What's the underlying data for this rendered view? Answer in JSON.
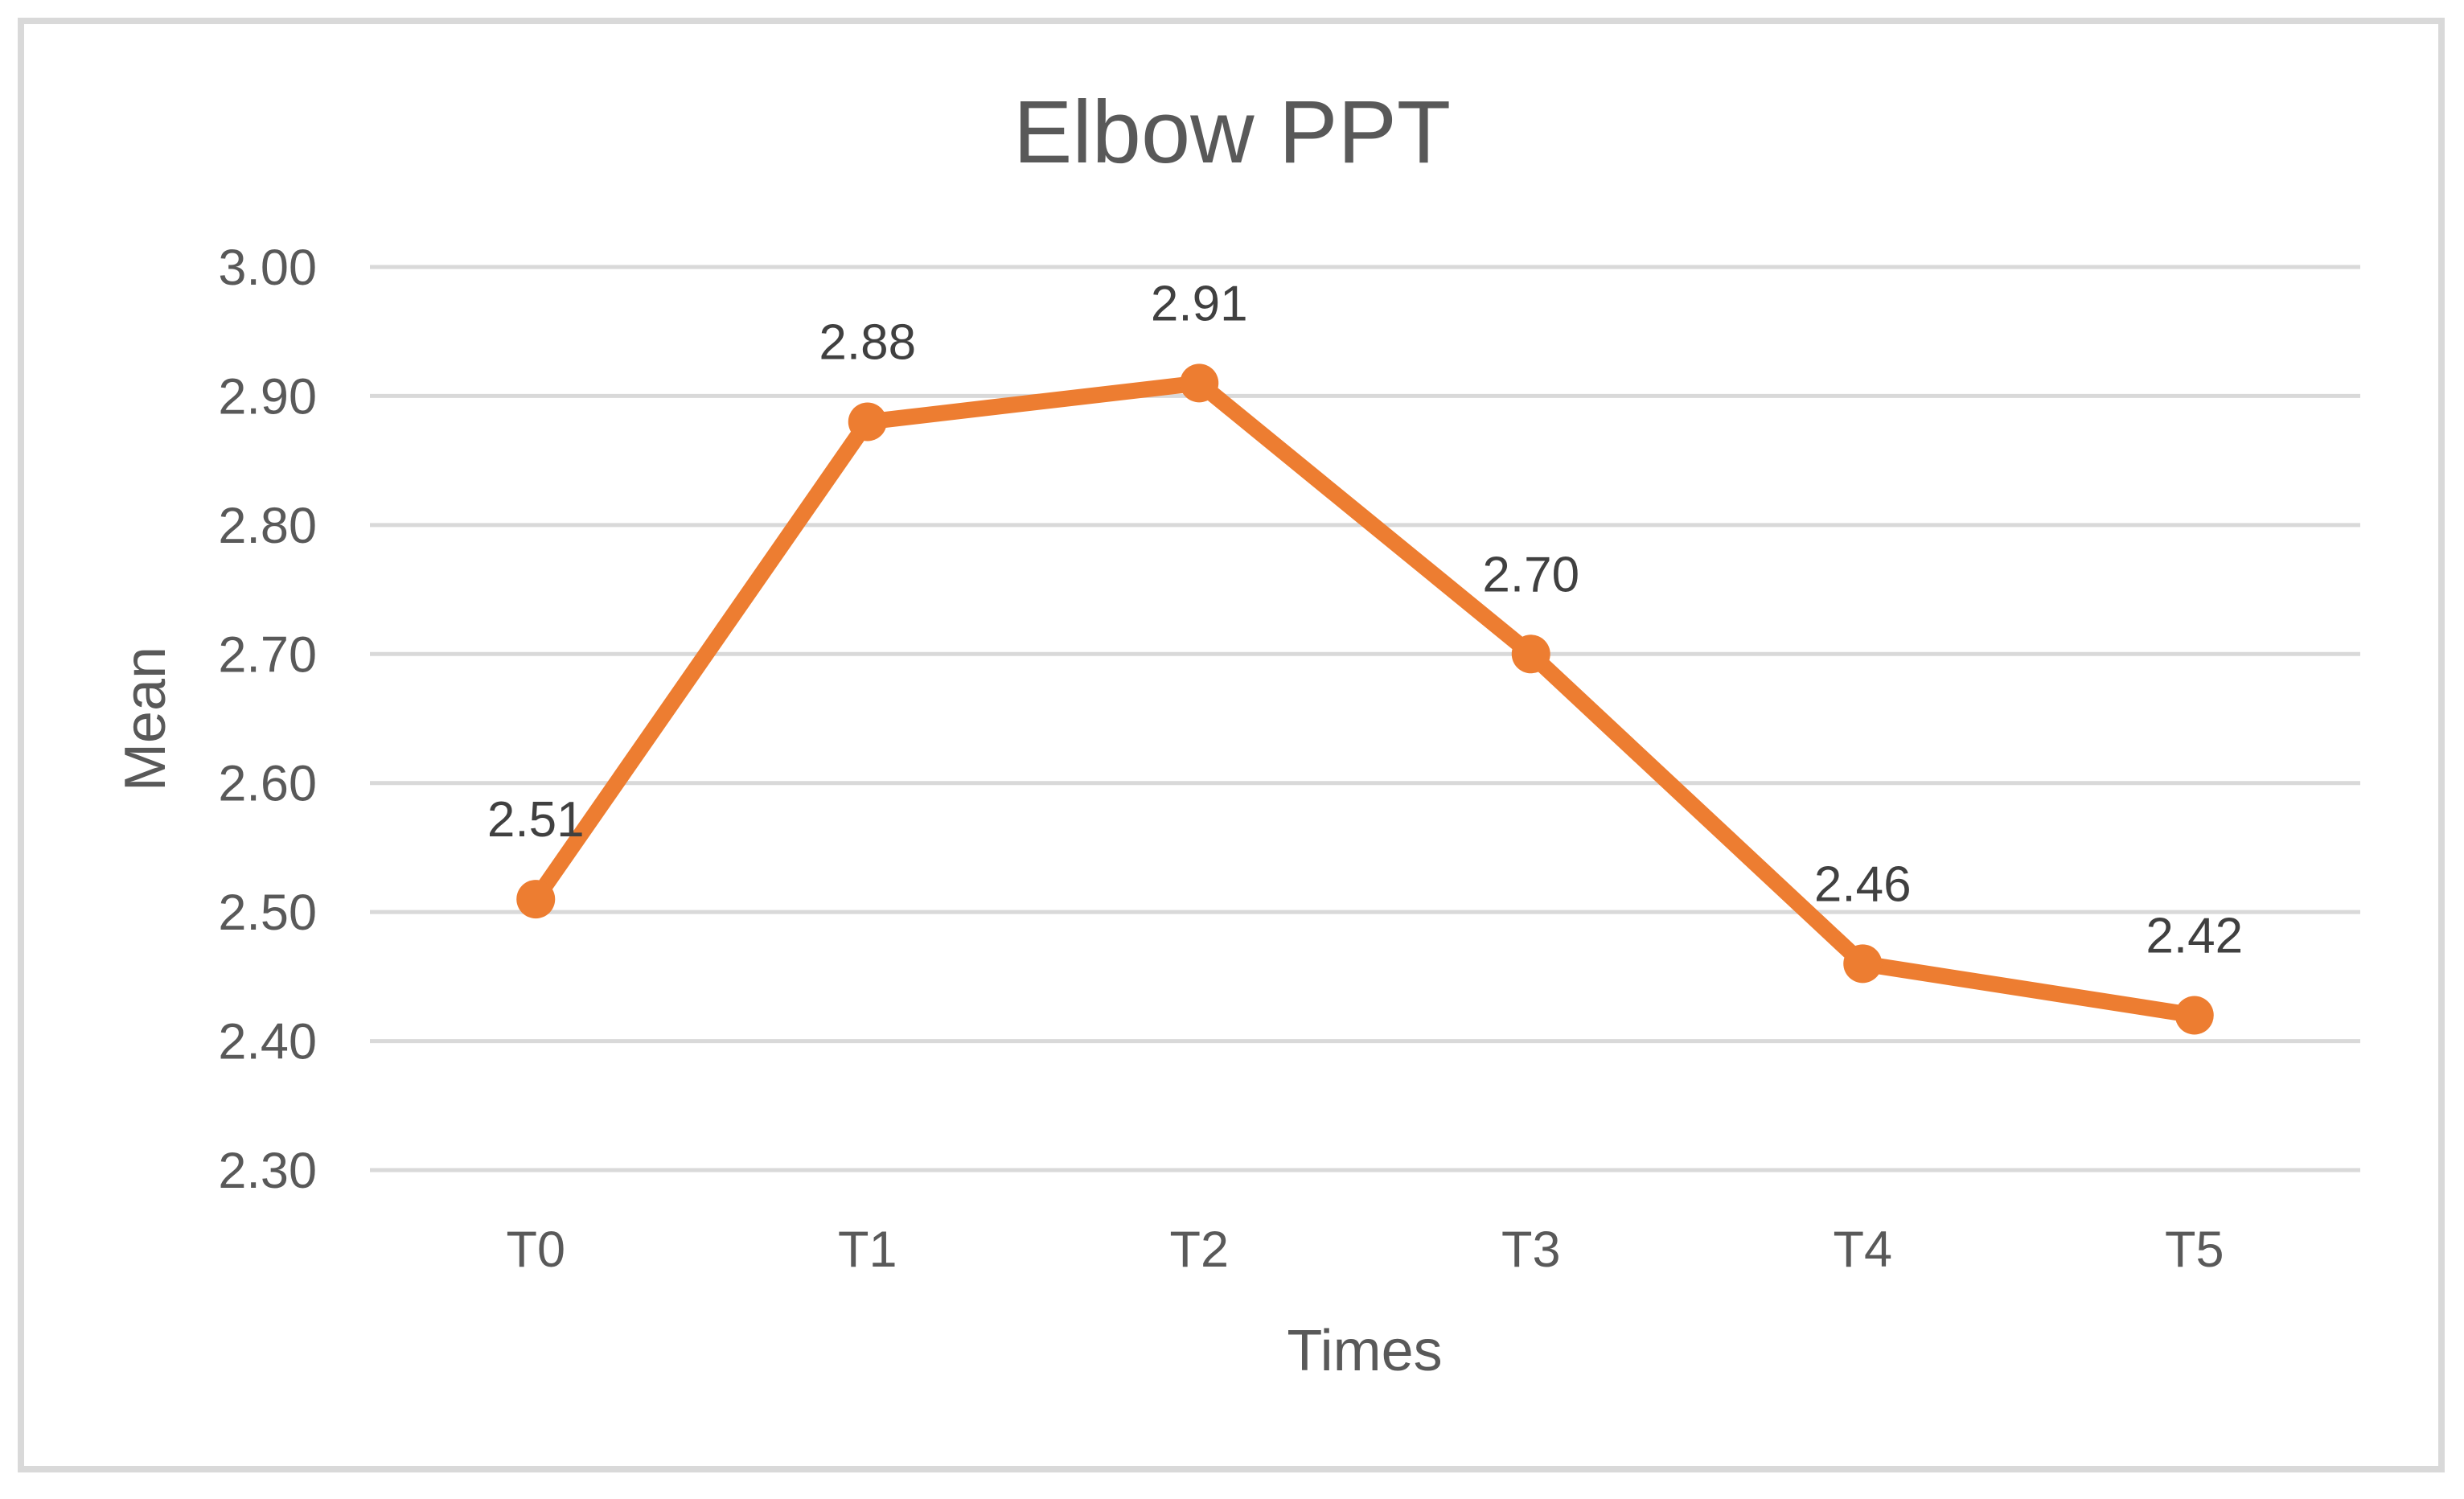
{
  "chart_data": {
    "type": "line",
    "title": "Elbow PPT",
    "xlabel": "Times",
    "ylabel": "Mean",
    "categories": [
      "T0",
      "T1",
      "T2",
      "T3",
      "T4",
      "T5"
    ],
    "values": [
      2.51,
      2.88,
      2.91,
      2.7,
      2.46,
      2.42
    ],
    "data_labels": [
      "2.51",
      "2.88",
      "2.91",
      "2.70",
      "2.46",
      "2.42"
    ],
    "y_ticks": [
      "3.00",
      "2.90",
      "2.80",
      "2.70",
      "2.60",
      "2.50",
      "2.40",
      "2.30"
    ],
    "ylim": [
      2.3,
      3.0
    ],
    "grid": true,
    "legend": "none",
    "data_label_position": "above",
    "series_color": "#ED7D31",
    "grid_color": "#D9D9D9",
    "frame_color": "#D9D9D9",
    "title_color": "#595959",
    "axis_text_color": "#595959",
    "data_label_color": "#404040",
    "background_color": "#FFFFFF"
  }
}
